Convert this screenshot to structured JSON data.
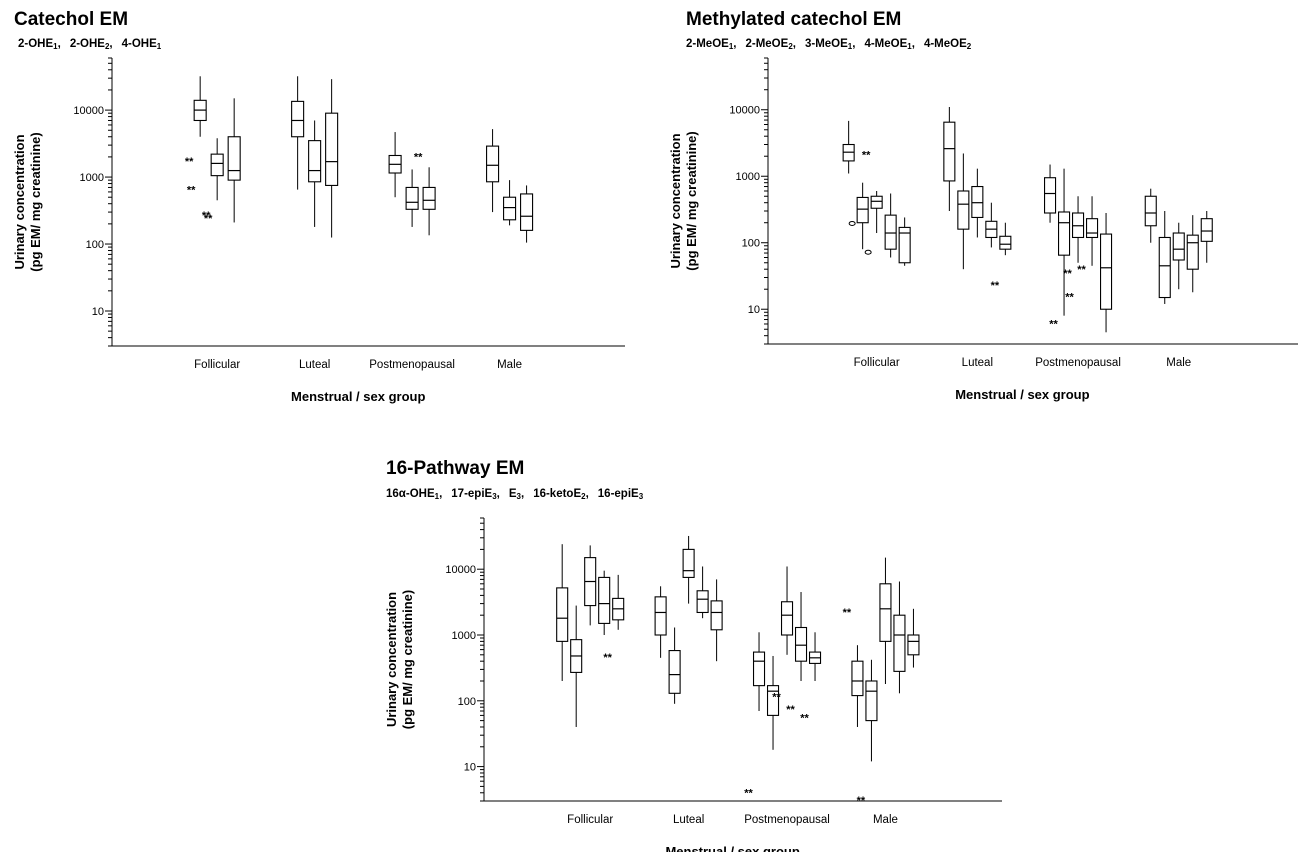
{
  "chart_data": [
    {
      "type": "boxplot",
      "title": "Catechol EM",
      "subtitle": [
        {
          "base": "2-OHE",
          "sub": "1"
        },
        {
          "base": "2-OHE",
          "sub": "2"
        },
        {
          "base": "4-OHE",
          "sub": "1"
        }
      ],
      "ylabel": [
        "Urinary concentration",
        "(pg EM/ mg creatinine)"
      ],
      "xlabel": "Menstrual / sex group",
      "yscale": "log",
      "ylim": [
        3,
        60000
      ],
      "yticks": [
        10,
        100,
        1000,
        10000
      ],
      "ytick_labels": [
        "10",
        "100",
        "1000",
        "10000"
      ],
      "categories": [
        "Follicular",
        "Luteal",
        "Postmenopausal",
        "Male"
      ],
      "groups": [
        {
          "category": "Follicular",
          "boxes": [
            {
              "min": 4000,
              "q1": 7000,
              "median": 10000,
              "q3": 14000,
              "max": 32000,
              "outliers": [
                {
                  "value": 1800,
                  "marker": "*"
                },
                {
                  "value": 680,
                  "marker": "*"
                }
              ]
            },
            {
              "min": 450,
              "q1": 1050,
              "median": 1600,
              "q3": 2200,
              "max": 3800,
              "outliers": [
                {
                  "value": 280,
                  "marker": "*"
                },
                {
                  "value": 255,
                  "marker": "*"
                }
              ]
            },
            {
              "min": 210,
              "q1": 900,
              "median": 1250,
              "q3": 4000,
              "max": 15000,
              "outliers": []
            }
          ]
        },
        {
          "category": "Luteal",
          "boxes": [
            {
              "min": 650,
              "q1": 4000,
              "median": 7000,
              "q3": 13500,
              "max": 32000,
              "outliers": []
            },
            {
              "min": 180,
              "q1": 850,
              "median": 1250,
              "q3": 3500,
              "max": 7000,
              "outliers": []
            },
            {
              "min": 125,
              "q1": 750,
              "median": 1700,
              "q3": 9000,
              "max": 29000,
              "outliers": []
            }
          ]
        },
        {
          "category": "Postmenopausal",
          "boxes": [
            {
              "min": 500,
              "q1": 1150,
              "median": 1550,
              "q3": 2100,
              "max": 4700,
              "outliers": []
            },
            {
              "min": 180,
              "q1": 330,
              "median": 420,
              "q3": 700,
              "max": 1300,
              "outliers": []
            },
            {
              "min": 135,
              "q1": 330,
              "median": 450,
              "q3": 700,
              "max": 1400,
              "outliers": [
                {
                  "value": 2100,
                  "marker": "*"
                }
              ]
            }
          ]
        },
        {
          "category": "Male",
          "boxes": [
            {
              "min": 300,
              "q1": 850,
              "median": 1500,
              "q3": 2900,
              "max": 5200,
              "outliers": []
            },
            {
              "min": 190,
              "q1": 230,
              "median": 350,
              "q3": 500,
              "max": 900,
              "outliers": []
            },
            {
              "min": 105,
              "q1": 160,
              "median": 260,
              "q3": 560,
              "max": 750,
              "outliers": []
            }
          ]
        }
      ]
    },
    {
      "type": "boxplot",
      "title": "Methylated catechol EM",
      "subtitle": [
        {
          "base": "2-MeOE",
          "sub": "1"
        },
        {
          "base": "2-MeOE",
          "sub": "2"
        },
        {
          "base": "3-MeOE",
          "sub": "1"
        },
        {
          "base": "4-MeOE",
          "sub": "1"
        },
        {
          "base": "4-MeOE",
          "sub": "2"
        }
      ],
      "ylabel": [
        "Urinary concentration",
        "(pg EM/ mg creatinine)"
      ],
      "xlabel": "Menstrual / sex group",
      "yscale": "log",
      "ylim": [
        3,
        60000
      ],
      "yticks": [
        10,
        100,
        1000,
        10000
      ],
      "ytick_labels": [
        "10",
        "100",
        "1000",
        "10000"
      ],
      "categories": [
        "Follicular",
        "Luteal",
        "Postmenopausal",
        "Male"
      ],
      "groups": [
        {
          "category": "Follicular",
          "boxes": [
            {
              "min": 1100,
              "q1": 1700,
              "median": 2300,
              "q3": 3000,
              "max": 6800,
              "outliers": []
            },
            {
              "min": 80,
              "q1": 200,
              "median": 320,
              "q3": 480,
              "max": 800,
              "outliers": [
                {
                  "value": 195,
                  "marker": "o"
                }
              ]
            },
            {
              "min": 140,
              "q1": 330,
              "median": 420,
              "q3": 500,
              "max": 600,
              "outliers": [
                {
                  "value": 2200,
                  "marker": "*"
                },
                {
                  "value": 72,
                  "marker": "o"
                }
              ]
            },
            {
              "min": 60,
              "q1": 80,
              "median": 140,
              "q3": 260,
              "max": 550,
              "outliers": []
            },
            {
              "min": 45,
              "q1": 50,
              "median": 140,
              "q3": 170,
              "max": 240,
              "outliers": []
            }
          ]
        },
        {
          "category": "Luteal",
          "boxes": [
            {
              "min": 300,
              "q1": 850,
              "median": 2600,
              "q3": 6500,
              "max": 11000,
              "outliers": []
            },
            {
              "min": 40,
              "q1": 160,
              "median": 380,
              "q3": 600,
              "max": 2200,
              "outliers": []
            },
            {
              "min": 120,
              "q1": 240,
              "median": 400,
              "q3": 700,
              "max": 1300,
              "outliers": []
            },
            {
              "min": 85,
              "q1": 120,
              "median": 160,
              "q3": 210,
              "max": 400,
              "outliers": []
            },
            {
              "min": 65,
              "q1": 80,
              "median": 95,
              "q3": 125,
              "max": 200,
              "outliers": [
                {
                  "value": 24,
                  "marker": "*"
                }
              ]
            }
          ]
        },
        {
          "category": "Postmenopausal",
          "boxes": [
            {
              "min": 200,
              "q1": 280,
              "median": 550,
              "q3": 950,
              "max": 1500,
              "outliers": []
            },
            {
              "min": 8,
              "q1": 65,
              "median": 200,
              "q3": 290,
              "max": 1300,
              "outliers": [
                {
                  "value": 6.3,
                  "marker": "*"
                }
              ]
            },
            {
              "min": 50,
              "q1": 120,
              "median": 180,
              "q3": 280,
              "max": 500,
              "outliers": [
                {
                  "value": 36,
                  "marker": "*"
                },
                {
                  "value": 16,
                  "marker": "*"
                }
              ]
            },
            {
              "min": 45,
              "q1": 120,
              "median": 140,
              "q3": 230,
              "max": 500,
              "outliers": [
                {
                  "value": 42,
                  "marker": "*"
                }
              ]
            },
            {
              "min": 4.5,
              "q1": 10,
              "median": 42,
              "q3": 135,
              "max": 280,
              "outliers": []
            }
          ]
        },
        {
          "category": "Male",
          "boxes": [
            {
              "min": 100,
              "q1": 180,
              "median": 280,
              "q3": 500,
              "max": 650,
              "outliers": []
            },
            {
              "min": 12,
              "q1": 15,
              "median": 45,
              "q3": 120,
              "max": 300,
              "outliers": []
            },
            {
              "min": 20,
              "q1": 55,
              "median": 80,
              "q3": 140,
              "max": 200,
              "outliers": []
            },
            {
              "min": 18,
              "q1": 40,
              "median": 100,
              "q3": 130,
              "max": 260,
              "outliers": []
            },
            {
              "min": 50,
              "q1": 105,
              "median": 150,
              "q3": 230,
              "max": 300,
              "outliers": []
            }
          ]
        }
      ]
    },
    {
      "type": "boxplot",
      "title": "16-Pathway EM",
      "subtitle": [
        {
          "base": "16α-OHE",
          "sub": "1"
        },
        {
          "base": "17-epiE",
          "sub": "3"
        },
        {
          "base": "E",
          "sub": "3"
        },
        {
          "base": "16-ketoE",
          "sub": "2"
        },
        {
          "base": "16-epiE",
          "sub": "3"
        }
      ],
      "ylabel": [
        "Urinary concentration",
        "(pg EM/ mg creatinine)"
      ],
      "xlabel": "Menstrual / sex group",
      "yscale": "log",
      "ylim": [
        3,
        60000
      ],
      "yticks": [
        10,
        100,
        1000,
        10000
      ],
      "ytick_labels": [
        "10",
        "100",
        "1000",
        "10000"
      ],
      "categories": [
        "Follicular",
        "Luteal",
        "Postmenopausal",
        "Male"
      ],
      "groups": [
        {
          "category": "Follicular",
          "boxes": [
            {
              "min": 200,
              "q1": 800,
              "median": 1800,
              "q3": 5200,
              "max": 24000,
              "outliers": []
            },
            {
              "min": 40,
              "q1": 270,
              "median": 480,
              "q3": 850,
              "max": 2800,
              "outliers": []
            },
            {
              "min": 1400,
              "q1": 2800,
              "median": 6500,
              "q3": 15000,
              "max": 23000,
              "outliers": []
            },
            {
              "min": 1000,
              "q1": 1500,
              "median": 3000,
              "q3": 7500,
              "max": 9500,
              "outliers": []
            },
            {
              "min": 1200,
              "q1": 1700,
              "median": 2500,
              "q3": 3600,
              "max": 8200,
              "outliers": [
                {
                  "value": 480,
                  "marker": "*"
                }
              ]
            }
          ]
        },
        {
          "category": "Luteal",
          "boxes": [
            {
              "min": 450,
              "q1": 1000,
              "median": 2200,
              "q3": 3800,
              "max": 5500,
              "outliers": []
            },
            {
              "min": 90,
              "q1": 130,
              "median": 250,
              "q3": 580,
              "max": 1300,
              "outliers": []
            },
            {
              "min": 3000,
              "q1": 7500,
              "median": 9500,
              "q3": 20000,
              "max": 32000,
              "outliers": []
            },
            {
              "min": 1800,
              "q1": 2200,
              "median": 3500,
              "q3": 4700,
              "max": 11000,
              "outliers": []
            },
            {
              "min": 400,
              "q1": 1200,
              "median": 2200,
              "q3": 3300,
              "max": 7000,
              "outliers": []
            }
          ]
        },
        {
          "category": "Postmenopausal",
          "boxes": [
            {
              "min": 70,
              "q1": 170,
              "median": 400,
              "q3": 550,
              "max": 1100,
              "outliers": [
                {
                  "value": 4.2,
                  "marker": "*"
                }
              ]
            },
            {
              "min": 18,
              "q1": 60,
              "median": 140,
              "q3": 170,
              "max": 480,
              "outliers": []
            },
            {
              "min": 500,
              "q1": 1000,
              "median": 2000,
              "q3": 3200,
              "max": 11000,
              "outliers": [
                {
                  "value": 120,
                  "marker": "*"
                }
              ]
            },
            {
              "min": 200,
              "q1": 400,
              "median": 700,
              "q3": 1300,
              "max": 4500,
              "outliers": [
                {
                  "value": 78,
                  "marker": "*"
                }
              ]
            },
            {
              "min": 200,
              "q1": 370,
              "median": 450,
              "q3": 550,
              "max": 1100,
              "outliers": [
                {
                  "value": 58,
                  "marker": "*"
                }
              ]
            }
          ]
        },
        {
          "category": "Male",
          "boxes": [
            {
              "min": 40,
              "q1": 120,
              "median": 200,
              "q3": 400,
              "max": 700,
              "outliers": [
                {
                  "value": 2300,
                  "marker": "*"
                }
              ]
            },
            {
              "min": 12,
              "q1": 50,
              "median": 140,
              "q3": 200,
              "max": 420,
              "outliers": [
                {
                  "value": 3.2,
                  "marker": "*"
                }
              ]
            },
            {
              "min": 180,
              "q1": 800,
              "median": 2500,
              "q3": 6000,
              "max": 15000,
              "outliers": []
            },
            {
              "min": 130,
              "q1": 280,
              "median": 1000,
              "q3": 2000,
              "max": 6500,
              "outliers": []
            },
            {
              "min": 320,
              "q1": 500,
              "median": 800,
              "q3": 1000,
              "max": 2500,
              "outliers": []
            }
          ]
        }
      ]
    }
  ]
}
